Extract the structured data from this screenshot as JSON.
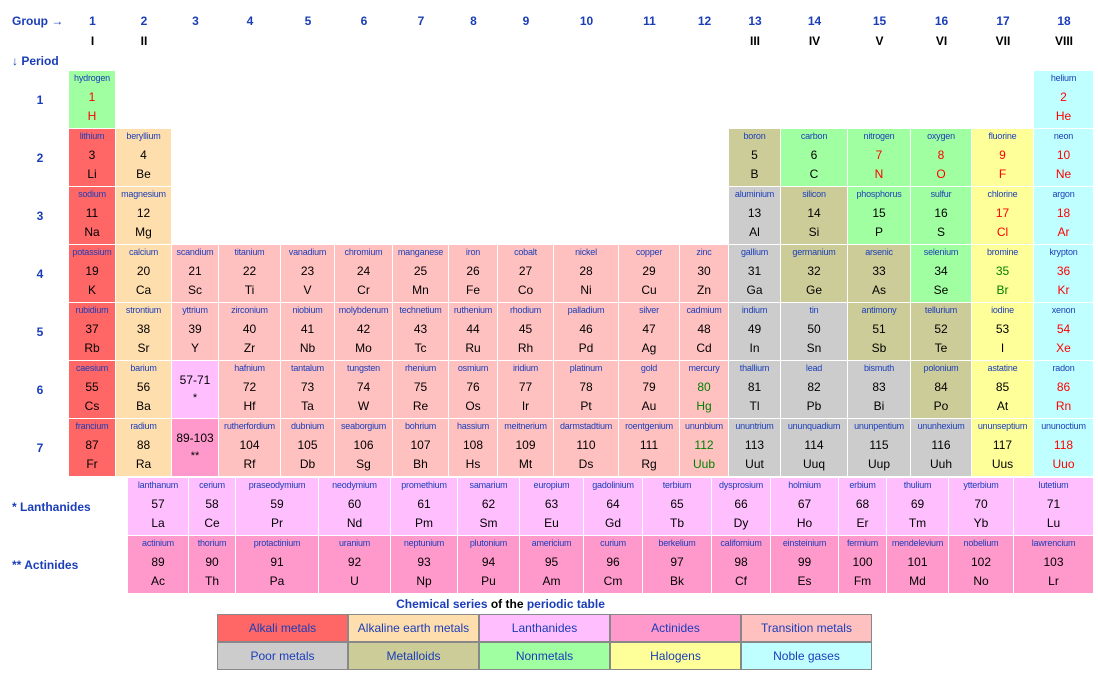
{
  "header": {
    "group_label": "Group →",
    "period_label": "↓ Period",
    "groups": [
      "1",
      "2",
      "3",
      "4",
      "5",
      "6",
      "7",
      "8",
      "9",
      "10",
      "11",
      "12",
      "13",
      "14",
      "15",
      "16",
      "17",
      "18"
    ],
    "roman": {
      "1": "I",
      "2": "II",
      "13": "III",
      "14": "IV",
      "15": "V",
      "16": "VI",
      "17": "VII",
      "18": "VIII"
    },
    "periods": [
      "1",
      "2",
      "3",
      "4",
      "5",
      "6",
      "7"
    ],
    "lanthanides_label": "* Lanthanides",
    "actinides_label": "** Actinides"
  },
  "colors": {
    "alkali": "#ff6666",
    "alkaline": "#ffdead",
    "lanthanide": "#ffbfff",
    "actinide": "#ff99cc",
    "transition": "#ffc0c0",
    "poor": "#cccccc",
    "metalloid": "#cccc99",
    "nonmetal": "#a0ffa0",
    "halogen": "#ffff99",
    "noble": "#c0ffff",
    "state_solid": "#000000",
    "state_liquid": "#008000",
    "state_gas": "#ff0000",
    "label_blue": "#1a3db8"
  },
  "placeholders": [
    {
      "group": 3,
      "period": 6,
      "range": "57-71",
      "mark": "*",
      "cat": "lanthanide"
    },
    {
      "group": 3,
      "period": 7,
      "range": "89-103",
      "mark": "**",
      "cat": "actinide"
    }
  ],
  "elements": [
    {
      "n": 1,
      "s": "H",
      "name": "hydrogen",
      "g": 1,
      "p": 1,
      "cat": "nonmetal",
      "st": "gas"
    },
    {
      "n": 2,
      "s": "He",
      "name": "helium",
      "g": 18,
      "p": 1,
      "cat": "noble",
      "st": "gas"
    },
    {
      "n": 3,
      "s": "Li",
      "name": "lithium",
      "g": 1,
      "p": 2,
      "cat": "alkali",
      "st": "solid"
    },
    {
      "n": 4,
      "s": "Be",
      "name": "beryllium",
      "g": 2,
      "p": 2,
      "cat": "alkaline",
      "st": "solid"
    },
    {
      "n": 5,
      "s": "B",
      "name": "boron",
      "g": 13,
      "p": 2,
      "cat": "metalloid",
      "st": "solid"
    },
    {
      "n": 6,
      "s": "C",
      "name": "carbon",
      "g": 14,
      "p": 2,
      "cat": "nonmetal",
      "st": "solid"
    },
    {
      "n": 7,
      "s": "N",
      "name": "nitrogen",
      "g": 15,
      "p": 2,
      "cat": "nonmetal",
      "st": "gas"
    },
    {
      "n": 8,
      "s": "O",
      "name": "oxygen",
      "g": 16,
      "p": 2,
      "cat": "nonmetal",
      "st": "gas"
    },
    {
      "n": 9,
      "s": "F",
      "name": "fluorine",
      "g": 17,
      "p": 2,
      "cat": "halogen",
      "st": "gas"
    },
    {
      "n": 10,
      "s": "Ne",
      "name": "neon",
      "g": 18,
      "p": 2,
      "cat": "noble",
      "st": "gas"
    },
    {
      "n": 11,
      "s": "Na",
      "name": "sodium",
      "g": 1,
      "p": 3,
      "cat": "alkali",
      "st": "solid"
    },
    {
      "n": 12,
      "s": "Mg",
      "name": "magnesium",
      "g": 2,
      "p": 3,
      "cat": "alkaline",
      "st": "solid"
    },
    {
      "n": 13,
      "s": "Al",
      "name": "aluminium",
      "g": 13,
      "p": 3,
      "cat": "poor",
      "st": "solid"
    },
    {
      "n": 14,
      "s": "Si",
      "name": "silicon",
      "g": 14,
      "p": 3,
      "cat": "metalloid",
      "st": "solid"
    },
    {
      "n": 15,
      "s": "P",
      "name": "phosphorus",
      "g": 15,
      "p": 3,
      "cat": "nonmetal",
      "st": "solid"
    },
    {
      "n": 16,
      "s": "S",
      "name": "sulfur",
      "g": 16,
      "p": 3,
      "cat": "nonmetal",
      "st": "solid"
    },
    {
      "n": 17,
      "s": "Cl",
      "name": "chlorine",
      "g": 17,
      "p": 3,
      "cat": "halogen",
      "st": "gas"
    },
    {
      "n": 18,
      "s": "Ar",
      "name": "argon",
      "g": 18,
      "p": 3,
      "cat": "noble",
      "st": "gas"
    },
    {
      "n": 19,
      "s": "K",
      "name": "potassium",
      "g": 1,
      "p": 4,
      "cat": "alkali",
      "st": "solid"
    },
    {
      "n": 20,
      "s": "Ca",
      "name": "calcium",
      "g": 2,
      "p": 4,
      "cat": "alkaline",
      "st": "solid"
    },
    {
      "n": 21,
      "s": "Sc",
      "name": "scandium",
      "g": 3,
      "p": 4,
      "cat": "transition",
      "st": "solid"
    },
    {
      "n": 22,
      "s": "Ti",
      "name": "titanium",
      "g": 4,
      "p": 4,
      "cat": "transition",
      "st": "solid"
    },
    {
      "n": 23,
      "s": "V",
      "name": "vanadium",
      "g": 5,
      "p": 4,
      "cat": "transition",
      "st": "solid"
    },
    {
      "n": 24,
      "s": "Cr",
      "name": "chromium",
      "g": 6,
      "p": 4,
      "cat": "transition",
      "st": "solid"
    },
    {
      "n": 25,
      "s": "Mn",
      "name": "manganese",
      "g": 7,
      "p": 4,
      "cat": "transition",
      "st": "solid"
    },
    {
      "n": 26,
      "s": "Fe",
      "name": "iron",
      "g": 8,
      "p": 4,
      "cat": "transition",
      "st": "solid"
    },
    {
      "n": 27,
      "s": "Co",
      "name": "cobalt",
      "g": 9,
      "p": 4,
      "cat": "transition",
      "st": "solid"
    },
    {
      "n": 28,
      "s": "Ni",
      "name": "nickel",
      "g": 10,
      "p": 4,
      "cat": "transition",
      "st": "solid"
    },
    {
      "n": 29,
      "s": "Cu",
      "name": "copper",
      "g": 11,
      "p": 4,
      "cat": "transition",
      "st": "solid"
    },
    {
      "n": 30,
      "s": "Zn",
      "name": "zinc",
      "g": 12,
      "p": 4,
      "cat": "transition",
      "st": "solid"
    },
    {
      "n": 31,
      "s": "Ga",
      "name": "gallium",
      "g": 13,
      "p": 4,
      "cat": "poor",
      "st": "solid"
    },
    {
      "n": 32,
      "s": "Ge",
      "name": "germanium",
      "g": 14,
      "p": 4,
      "cat": "metalloid",
      "st": "solid"
    },
    {
      "n": 33,
      "s": "As",
      "name": "arsenic",
      "g": 15,
      "p": 4,
      "cat": "metalloid",
      "st": "solid"
    },
    {
      "n": 34,
      "s": "Se",
      "name": "selenium",
      "g": 16,
      "p": 4,
      "cat": "nonmetal",
      "st": "solid"
    },
    {
      "n": 35,
      "s": "Br",
      "name": "bromine",
      "g": 17,
      "p": 4,
      "cat": "halogen",
      "st": "liquid"
    },
    {
      "n": 36,
      "s": "Kr",
      "name": "krypton",
      "g": 18,
      "p": 4,
      "cat": "noble",
      "st": "gas"
    },
    {
      "n": 37,
      "s": "Rb",
      "name": "rubidium",
      "g": 1,
      "p": 5,
      "cat": "alkali",
      "st": "solid"
    },
    {
      "n": 38,
      "s": "Sr",
      "name": "strontium",
      "g": 2,
      "p": 5,
      "cat": "alkaline",
      "st": "solid"
    },
    {
      "n": 39,
      "s": "Y",
      "name": "yttrium",
      "g": 3,
      "p": 5,
      "cat": "transition",
      "st": "solid"
    },
    {
      "n": 40,
      "s": "Zr",
      "name": "zirconium",
      "g": 4,
      "p": 5,
      "cat": "transition",
      "st": "solid"
    },
    {
      "n": 41,
      "s": "Nb",
      "name": "niobium",
      "g": 5,
      "p": 5,
      "cat": "transition",
      "st": "solid"
    },
    {
      "n": 42,
      "s": "Mo",
      "name": "molybdenum",
      "g": 6,
      "p": 5,
      "cat": "transition",
      "st": "solid"
    },
    {
      "n": 43,
      "s": "Tc",
      "name": "technetium",
      "g": 7,
      "p": 5,
      "cat": "transition",
      "st": "solid"
    },
    {
      "n": 44,
      "s": "Ru",
      "name": "ruthenium",
      "g": 8,
      "p": 5,
      "cat": "transition",
      "st": "solid"
    },
    {
      "n": 45,
      "s": "Rh",
      "name": "rhodium",
      "g": 9,
      "p": 5,
      "cat": "transition",
      "st": "solid"
    },
    {
      "n": 46,
      "s": "Pd",
      "name": "palladium",
      "g": 10,
      "p": 5,
      "cat": "transition",
      "st": "solid"
    },
    {
      "n": 47,
      "s": "Ag",
      "name": "silver",
      "g": 11,
      "p": 5,
      "cat": "transition",
      "st": "solid"
    },
    {
      "n": 48,
      "s": "Cd",
      "name": "cadmium",
      "g": 12,
      "p": 5,
      "cat": "transition",
      "st": "solid"
    },
    {
      "n": 49,
      "s": "In",
      "name": "indium",
      "g": 13,
      "p": 5,
      "cat": "poor",
      "st": "solid"
    },
    {
      "n": 50,
      "s": "Sn",
      "name": "tin",
      "g": 14,
      "p": 5,
      "cat": "poor",
      "st": "solid"
    },
    {
      "n": 51,
      "s": "Sb",
      "name": "antimony",
      "g": 15,
      "p": 5,
      "cat": "metalloid",
      "st": "solid"
    },
    {
      "n": 52,
      "s": "Te",
      "name": "tellurium",
      "g": 16,
      "p": 5,
      "cat": "metalloid",
      "st": "solid"
    },
    {
      "n": 53,
      "s": "I",
      "name": "iodine",
      "g": 17,
      "p": 5,
      "cat": "halogen",
      "st": "solid"
    },
    {
      "n": 54,
      "s": "Xe",
      "name": "xenon",
      "g": 18,
      "p": 5,
      "cat": "noble",
      "st": "gas"
    },
    {
      "n": 55,
      "s": "Cs",
      "name": "caesium",
      "g": 1,
      "p": 6,
      "cat": "alkali",
      "st": "solid"
    },
    {
      "n": 56,
      "s": "Ba",
      "name": "barium",
      "g": 2,
      "p": 6,
      "cat": "alkaline",
      "st": "solid"
    },
    {
      "n": 72,
      "s": "Hf",
      "name": "hafnium",
      "g": 4,
      "p": 6,
      "cat": "transition",
      "st": "solid"
    },
    {
      "n": 73,
      "s": "Ta",
      "name": "tantalum",
      "g": 5,
      "p": 6,
      "cat": "transition",
      "st": "solid"
    },
    {
      "n": 74,
      "s": "W",
      "name": "tungsten",
      "g": 6,
      "p": 6,
      "cat": "transition",
      "st": "solid"
    },
    {
      "n": 75,
      "s": "Re",
      "name": "rhenium",
      "g": 7,
      "p": 6,
      "cat": "transition",
      "st": "solid"
    },
    {
      "n": 76,
      "s": "Os",
      "name": "osmium",
      "g": 8,
      "p": 6,
      "cat": "transition",
      "st": "solid"
    },
    {
      "n": 77,
      "s": "Ir",
      "name": "iridium",
      "g": 9,
      "p": 6,
      "cat": "transition",
      "st": "solid"
    },
    {
      "n": 78,
      "s": "Pt",
      "name": "platinum",
      "g": 10,
      "p": 6,
      "cat": "transition",
      "st": "solid"
    },
    {
      "n": 79,
      "s": "Au",
      "name": "gold",
      "g": 11,
      "p": 6,
      "cat": "transition",
      "st": "solid"
    },
    {
      "n": 80,
      "s": "Hg",
      "name": "mercury",
      "g": 12,
      "p": 6,
      "cat": "transition",
      "st": "liquid"
    },
    {
      "n": 81,
      "s": "Tl",
      "name": "thallium",
      "g": 13,
      "p": 6,
      "cat": "poor",
      "st": "solid"
    },
    {
      "n": 82,
      "s": "Pb",
      "name": "lead",
      "g": 14,
      "p": 6,
      "cat": "poor",
      "st": "solid"
    },
    {
      "n": 83,
      "s": "Bi",
      "name": "bismuth",
      "g": 15,
      "p": 6,
      "cat": "poor",
      "st": "solid"
    },
    {
      "n": 84,
      "s": "Po",
      "name": "polonium",
      "g": 16,
      "p": 6,
      "cat": "metalloid",
      "st": "solid"
    },
    {
      "n": 85,
      "s": "At",
      "name": "astatine",
      "g": 17,
      "p": 6,
      "cat": "halogen",
      "st": "solid"
    },
    {
      "n": 86,
      "s": "Rn",
      "name": "radon",
      "g": 18,
      "p": 6,
      "cat": "noble",
      "st": "gas"
    },
    {
      "n": 87,
      "s": "Fr",
      "name": "francium",
      "g": 1,
      "p": 7,
      "cat": "alkali",
      "st": "solid"
    },
    {
      "n": 88,
      "s": "Ra",
      "name": "radium",
      "g": 2,
      "p": 7,
      "cat": "alkaline",
      "st": "solid"
    },
    {
      "n": 104,
      "s": "Rf",
      "name": "rutherfordium",
      "g": 4,
      "p": 7,
      "cat": "transition",
      "st": "solid"
    },
    {
      "n": 105,
      "s": "Db",
      "name": "dubnium",
      "g": 5,
      "p": 7,
      "cat": "transition",
      "st": "solid"
    },
    {
      "n": 106,
      "s": "Sg",
      "name": "seaborgium",
      "g": 6,
      "p": 7,
      "cat": "transition",
      "st": "solid"
    },
    {
      "n": 107,
      "s": "Bh",
      "name": "bohrium",
      "g": 7,
      "p": 7,
      "cat": "transition",
      "st": "solid"
    },
    {
      "n": 108,
      "s": "Hs",
      "name": "hassium",
      "g": 8,
      "p": 7,
      "cat": "transition",
      "st": "solid"
    },
    {
      "n": 109,
      "s": "Mt",
      "name": "meitnerium",
      "g": 9,
      "p": 7,
      "cat": "transition",
      "st": "solid"
    },
    {
      "n": 110,
      "s": "Ds",
      "name": "darmstadtium",
      "g": 10,
      "p": 7,
      "cat": "transition",
      "st": "solid"
    },
    {
      "n": 111,
      "s": "Rg",
      "name": "roentgenium",
      "g": 11,
      "p": 7,
      "cat": "transition",
      "st": "solid"
    },
    {
      "n": 112,
      "s": "Uub",
      "name": "ununbium",
      "g": 12,
      "p": 7,
      "cat": "transition",
      "st": "liquid"
    },
    {
      "n": 113,
      "s": "Uut",
      "name": "ununtrium",
      "g": 13,
      "p": 7,
      "cat": "poor",
      "st": "solid"
    },
    {
      "n": 114,
      "s": "Uuq",
      "name": "ununquadium",
      "g": 14,
      "p": 7,
      "cat": "poor",
      "st": "solid"
    },
    {
      "n": 115,
      "s": "Uup",
      "name": "ununpentium",
      "g": 15,
      "p": 7,
      "cat": "poor",
      "st": "solid"
    },
    {
      "n": 116,
      "s": "Uuh",
      "name": "ununhexium",
      "g": 16,
      "p": 7,
      "cat": "poor",
      "st": "solid"
    },
    {
      "n": 117,
      "s": "Uus",
      "name": "ununseptium",
      "g": 17,
      "p": 7,
      "cat": "halogen",
      "st": "solid"
    },
    {
      "n": 118,
      "s": "Uuo",
      "name": "ununoctium",
      "g": 18,
      "p": 7,
      "cat": "noble",
      "st": "gas"
    }
  ],
  "lanthanides": [
    {
      "n": 57,
      "s": "La",
      "name": "lanthanum"
    },
    {
      "n": 58,
      "s": "Ce",
      "name": "cerium"
    },
    {
      "n": 59,
      "s": "Pr",
      "name": "praseodymium"
    },
    {
      "n": 60,
      "s": "Nd",
      "name": "neodymium"
    },
    {
      "n": 61,
      "s": "Pm",
      "name": "promethium"
    },
    {
      "n": 62,
      "s": "Sm",
      "name": "samarium"
    },
    {
      "n": 63,
      "s": "Eu",
      "name": "europium"
    },
    {
      "n": 64,
      "s": "Gd",
      "name": "gadolinium"
    },
    {
      "n": 65,
      "s": "Tb",
      "name": "terbium"
    },
    {
      "n": 66,
      "s": "Dy",
      "name": "dysprosium"
    },
    {
      "n": 67,
      "s": "Ho",
      "name": "holmium"
    },
    {
      "n": 68,
      "s": "Er",
      "name": "erbium"
    },
    {
      "n": 69,
      "s": "Tm",
      "name": "thulium"
    },
    {
      "n": 70,
      "s": "Yb",
      "name": "ytterbium"
    },
    {
      "n": 71,
      "s": "Lu",
      "name": "lutetium"
    }
  ],
  "actinides": [
    {
      "n": 89,
      "s": "Ac",
      "name": "actinium"
    },
    {
      "n": 90,
      "s": "Th",
      "name": "thorium"
    },
    {
      "n": 91,
      "s": "Pa",
      "name": "protactinium"
    },
    {
      "n": 92,
      "s": "U",
      "name": "uranium"
    },
    {
      "n": 93,
      "s": "Np",
      "name": "neptunium"
    },
    {
      "n": 94,
      "s": "Pu",
      "name": "plutonium"
    },
    {
      "n": 95,
      "s": "Am",
      "name": "americium"
    },
    {
      "n": 96,
      "s": "Cm",
      "name": "curium"
    },
    {
      "n": 97,
      "s": "Bk",
      "name": "berkelium"
    },
    {
      "n": 98,
      "s": "Cf",
      "name": "californium"
    },
    {
      "n": 99,
      "s": "Es",
      "name": "einsteinium"
    },
    {
      "n": 100,
      "s": "Fm",
      "name": "fermium"
    },
    {
      "n": 101,
      "s": "Md",
      "name": "mendelevium"
    },
    {
      "n": 102,
      "s": "No",
      "name": "nobelium"
    },
    {
      "n": 103,
      "s": "Lr",
      "name": "lawrencium"
    }
  ],
  "legend": {
    "title_prefix": "Chemical series",
    "title_middle": " of the ",
    "title_suffix": "periodic table",
    "items": [
      {
        "label": "Alkali metals",
        "cat": "alkali"
      },
      {
        "label": "Alkaline earth metals",
        "cat": "alkaline"
      },
      {
        "label": "Lanthanides",
        "cat": "lanthanide"
      },
      {
        "label": "Actinides",
        "cat": "actinide"
      },
      {
        "label": "Transition metals",
        "cat": "transition"
      },
      {
        "label": "Poor metals",
        "cat": "poor"
      },
      {
        "label": "Metalloids",
        "cat": "metalloid"
      },
      {
        "label": "Nonmetals",
        "cat": "nonmetal"
      },
      {
        "label": "Halogens",
        "cat": "halogen"
      },
      {
        "label": "Noble gases",
        "cat": "noble"
      }
    ]
  }
}
